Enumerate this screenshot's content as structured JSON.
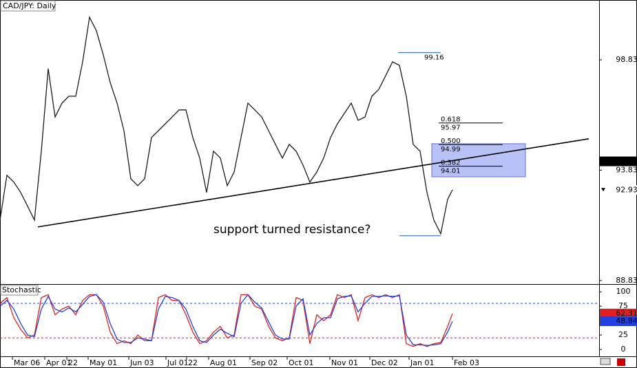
{
  "chart_data": [
    {
      "type": "line",
      "title": "CAD/JPY: Daily",
      "color": "#1a1a1a",
      "x": [
        0,
        1,
        2,
        3,
        4,
        5,
        6,
        7,
        8,
        9,
        10,
        11,
        12,
        13,
        14,
        15,
        16,
        17,
        18,
        19,
        20,
        21,
        22,
        23,
        24,
        25,
        26,
        27,
        28,
        29,
        30,
        31,
        32,
        33,
        34,
        35,
        36,
        37,
        38,
        39,
        40,
        41,
        42,
        43,
        44,
        45,
        46,
        47,
        48,
        49,
        50,
        51,
        52,
        53,
        54,
        55,
        56,
        57,
        58,
        59,
        60,
        61,
        62,
        63,
        64,
        65,
        65.7
      ],
      "values": [
        91.57,
        93.6,
        93.29,
        92.82,
        92.2,
        91.57,
        94.69,
        98.43,
        96.24,
        96.87,
        97.18,
        97.18,
        98.74,
        100.76,
        100.14,
        99.05,
        97.8,
        96.87,
        95.62,
        93.44,
        93.13,
        93.44,
        95.31,
        95.62,
        95.93,
        96.24,
        96.56,
        96.56,
        95.31,
        94.38,
        92.82,
        94.69,
        94.38,
        93.13,
        93.75,
        95.31,
        96.87,
        96.56,
        96.24,
        95.62,
        95.0,
        94.38,
        95.0,
        94.69,
        94.06,
        93.29,
        93.75,
        94.38,
        95.31,
        95.93,
        96.4,
        96.87,
        96.09,
        96.24,
        97.18,
        97.49,
        98.11,
        98.74,
        98.58,
        97.18,
        95.0,
        94.69,
        92.82,
        91.57,
        90.95,
        92.51,
        92.94
      ],
      "xlim": [
        0,
        87
      ],
      "ylim": [
        88.67,
        101.54
      ],
      "yticks": [
        98.83,
        93.83,
        88.83
      ],
      "trendline": {
        "x": [
          5.5,
          85.5
        ],
        "values": [
          91.26,
          95.25
        ]
      },
      "swing_high": 99.16,
      "swing_low": 90.86,
      "fib_levels": [
        {
          "ratio": "0.618",
          "value": 95.97
        },
        {
          "ratio": "0.500",
          "value": 94.99
        },
        {
          "ratio": "0.382",
          "value": 94.01
        }
      ],
      "zone": [
        93.53,
        95.03
      ],
      "marked_price": 94.23,
      "last_price": 92.93,
      "annotation": "support turned resistance?"
    },
    {
      "type": "line",
      "title": "Stochastic",
      "x": [
        0,
        1,
        2,
        3,
        4,
        5,
        6,
        7,
        8,
        9,
        10,
        11,
        12,
        13,
        14,
        15,
        16,
        17,
        18,
        19,
        20,
        21,
        22,
        23,
        24,
        25,
        26,
        27,
        28,
        29,
        30,
        31,
        32,
        33,
        34,
        35,
        36,
        37,
        38,
        39,
        40,
        41,
        42,
        43,
        44,
        45,
        46,
        47,
        48,
        49,
        50,
        51,
        52,
        53,
        54,
        55,
        56,
        57,
        58,
        59,
        60,
        61,
        62,
        63,
        64,
        65,
        65.7
      ],
      "series": [
        {
          "color": "#e02020",
          "values": [
            80,
            90,
            55,
            35,
            20,
            25,
            90,
            95,
            60,
            70,
            75,
            60,
            85,
            95,
            95,
            75,
            30,
            10,
            15,
            10,
            25,
            15,
            15,
            90,
            95,
            85,
            85,
            60,
            30,
            10,
            15,
            30,
            40,
            20,
            25,
            95,
            95,
            75,
            70,
            40,
            20,
            15,
            20,
            90,
            85,
            10,
            60,
            50,
            60,
            95,
            90,
            95,
            50,
            90,
            95,
            90,
            95,
            90,
            95,
            10,
            5,
            10,
            5,
            10,
            12,
            40,
            62.31
          ]
        },
        {
          "color": "#2040e0",
          "values": [
            75,
            85,
            70,
            45,
            25,
            22,
            70,
            92,
            70,
            65,
            72,
            65,
            78,
            92,
            95,
            82,
            45,
            18,
            12,
            12,
            20,
            18,
            15,
            70,
            92,
            90,
            85,
            70,
            40,
            15,
            12,
            25,
            35,
            28,
            22,
            80,
            95,
            82,
            72,
            48,
            25,
            18,
            18,
            75,
            88,
            25,
            45,
            55,
            55,
            88,
            92,
            93,
            65,
            80,
            92,
            92,
            93,
            92,
            93,
            25,
            8,
            8,
            7,
            8,
            10,
            30,
            48.84
          ]
        }
      ],
      "levels": [
        {
          "value": 80,
          "color": "#2040e0"
        },
        {
          "value": 20,
          "color": "#e02020"
        }
      ],
      "xlim": [
        0,
        87
      ],
      "ylim": [
        -12,
        111
      ],
      "yticks": [
        100,
        75,
        25,
        0
      ],
      "xticks": [
        {
          "value": 1.8,
          "label": "Mar 06"
        },
        {
          "value": 6.5,
          "label": "Apr 01"
        },
        {
          "value": 9.7,
          "label": "22"
        },
        {
          "value": 12.8,
          "label": "May 01"
        },
        {
          "value": 18.7,
          "label": "Jun 03"
        },
        {
          "value": 24.1,
          "label": "Jul 01"
        },
        {
          "value": 27.1,
          "label": "22"
        },
        {
          "value": 30.3,
          "label": "Aug 01"
        },
        {
          "value": 36.3,
          "label": "Sep 02"
        },
        {
          "value": 41.7,
          "label": "Oct 01"
        },
        {
          "value": 47.9,
          "label": "Nov 01"
        },
        {
          "value": 53.7,
          "label": "Dec 02"
        },
        {
          "value": 59.4,
          "label": "Jan 01"
        },
        {
          "value": 65.7,
          "label": "Feb 03"
        }
      ]
    }
  ]
}
